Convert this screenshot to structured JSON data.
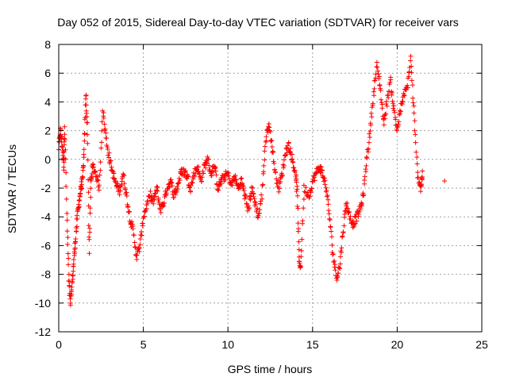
{
  "chart_data": {
    "type": "scatter",
    "title": "Day 052 of 2015, Sidereal Day-to-day VTEC variation (SDTVAR) for receiver vars",
    "xlabel": "GPS time / hours",
    "ylabel": "SDTVAR / TECUs",
    "xlim": [
      0,
      25
    ],
    "ylim": [
      -12,
      8
    ],
    "xticks": [
      0,
      5,
      10,
      15,
      20,
      25
    ],
    "xtick_labels": [
      "0",
      "5",
      "10",
      "15",
      "20",
      "25"
    ],
    "yticks": [
      -12,
      -10,
      -8,
      -6,
      -4,
      -2,
      0,
      2,
      4,
      6,
      8
    ],
    "ytick_labels": [
      "-12",
      "-10",
      "-8",
      "-6",
      "-4",
      "-2",
      "0",
      "2",
      "4",
      "6",
      "8"
    ],
    "grid": true,
    "marker": "+",
    "color": "#ff0000",
    "series": [
      {
        "name": "SDTVAR",
        "trace_points": [
          [
            0.0,
            0.8
          ],
          [
            0.1,
            2.0
          ],
          [
            0.2,
            1.0
          ],
          [
            0.3,
            -0.5
          ],
          [
            0.35,
            2.4
          ],
          [
            0.5,
            -4.5
          ],
          [
            0.6,
            -8.5
          ],
          [
            0.7,
            -10.1
          ],
          [
            0.8,
            -8.5
          ],
          [
            0.9,
            -7.0
          ],
          [
            1.0,
            -5.5
          ],
          [
            1.1,
            -4.0
          ],
          [
            1.2,
            -3.0
          ],
          [
            1.3,
            -2.0
          ],
          [
            1.4,
            -1.5
          ],
          [
            1.5,
            0.5
          ],
          [
            1.6,
            4.6
          ],
          [
            1.7,
            2.0
          ],
          [
            1.8,
            -6.5
          ],
          [
            1.9,
            -1.5
          ],
          [
            2.0,
            -0.5
          ],
          [
            2.2,
            -1.0
          ],
          [
            2.4,
            -2.0
          ],
          [
            2.6,
            3.5
          ],
          [
            2.8,
            1.5
          ],
          [
            3.0,
            0.0
          ],
          [
            3.2,
            -1.0
          ],
          [
            3.4,
            -1.8
          ],
          [
            3.6,
            -2.2
          ],
          [
            3.8,
            -1.0
          ],
          [
            4.0,
            -2.5
          ],
          [
            4.2,
            -4.0
          ],
          [
            4.4,
            -5.0
          ],
          [
            4.6,
            -6.8
          ],
          [
            4.8,
            -6.0
          ],
          [
            5.0,
            -4.0
          ],
          [
            5.2,
            -3.2
          ],
          [
            5.4,
            -2.5
          ],
          [
            5.6,
            -3.0
          ],
          [
            5.8,
            -2.0
          ],
          [
            6.0,
            -3.5
          ],
          [
            6.2,
            -3.0
          ],
          [
            6.4,
            -2.0
          ],
          [
            6.6,
            -1.5
          ],
          [
            6.8,
            -2.5
          ],
          [
            7.0,
            -2.0
          ],
          [
            7.2,
            -1.0
          ],
          [
            7.4,
            -0.8
          ],
          [
            7.6,
            -1.2
          ],
          [
            7.8,
            -2.0
          ],
          [
            8.0,
            -1.0
          ],
          [
            8.2,
            -0.5
          ],
          [
            8.4,
            -1.5
          ],
          [
            8.6,
            -0.5
          ],
          [
            8.8,
            0.0
          ],
          [
            9.0,
            -1.0
          ],
          [
            9.2,
            -0.5
          ],
          [
            9.4,
            -2.0
          ],
          [
            9.6,
            -1.5
          ],
          [
            9.8,
            -1.2
          ],
          [
            10.0,
            -1.0
          ],
          [
            10.2,
            -1.8
          ],
          [
            10.4,
            -1.2
          ],
          [
            10.6,
            -2.0
          ],
          [
            10.8,
            -1.5
          ],
          [
            11.0,
            -2.5
          ],
          [
            11.2,
            -3.5
          ],
          [
            11.4,
            -2.0
          ],
          [
            11.6,
            -3.0
          ],
          [
            11.8,
            -4.0
          ],
          [
            12.0,
            -2.5
          ],
          [
            12.2,
            1.0
          ],
          [
            12.4,
            2.5
          ],
          [
            12.6,
            1.0
          ],
          [
            12.8,
            -1.0
          ],
          [
            13.0,
            -2.0
          ],
          [
            13.2,
            -1.0
          ],
          [
            13.4,
            0.5
          ],
          [
            13.6,
            1.0
          ],
          [
            13.8,
            0.0
          ],
          [
            14.0,
            -1.0
          ],
          [
            14.1,
            -2.5
          ],
          [
            14.2,
            -7.0
          ],
          [
            14.3,
            -7.5
          ],
          [
            14.5,
            -2.0
          ],
          [
            14.8,
            -2.5
          ],
          [
            15.0,
            -1.5
          ],
          [
            15.2,
            -1.0
          ],
          [
            15.4,
            -0.5
          ],
          [
            15.6,
            -1.0
          ],
          [
            15.8,
            -2.0
          ],
          [
            16.0,
            -4.0
          ],
          [
            16.2,
            -6.5
          ],
          [
            16.4,
            -8.2
          ],
          [
            16.6,
            -7.5
          ],
          [
            16.8,
            -5.0
          ],
          [
            17.0,
            -3.0
          ],
          [
            17.2,
            -4.0
          ],
          [
            17.4,
            -4.5
          ],
          [
            17.6,
            -4.0
          ],
          [
            17.8,
            -3.5
          ],
          [
            18.0,
            -2.5
          ],
          [
            18.2,
            0.0
          ],
          [
            18.4,
            2.0
          ],
          [
            18.6,
            4.5
          ],
          [
            18.8,
            6.5
          ],
          [
            19.0,
            5.0
          ],
          [
            19.2,
            2.5
          ],
          [
            19.4,
            4.0
          ],
          [
            19.6,
            5.5
          ],
          [
            19.8,
            3.5
          ],
          [
            20.0,
            2.0
          ],
          [
            20.2,
            3.5
          ],
          [
            20.4,
            4.5
          ],
          [
            20.6,
            5.0
          ],
          [
            20.8,
            7.0
          ],
          [
            21.0,
            3.0
          ],
          [
            21.2,
            -1.0
          ],
          [
            21.4,
            -2.0
          ],
          [
            21.5,
            -1.0
          ],
          [
            22.8,
            -1.5
          ]
        ]
      }
    ]
  }
}
